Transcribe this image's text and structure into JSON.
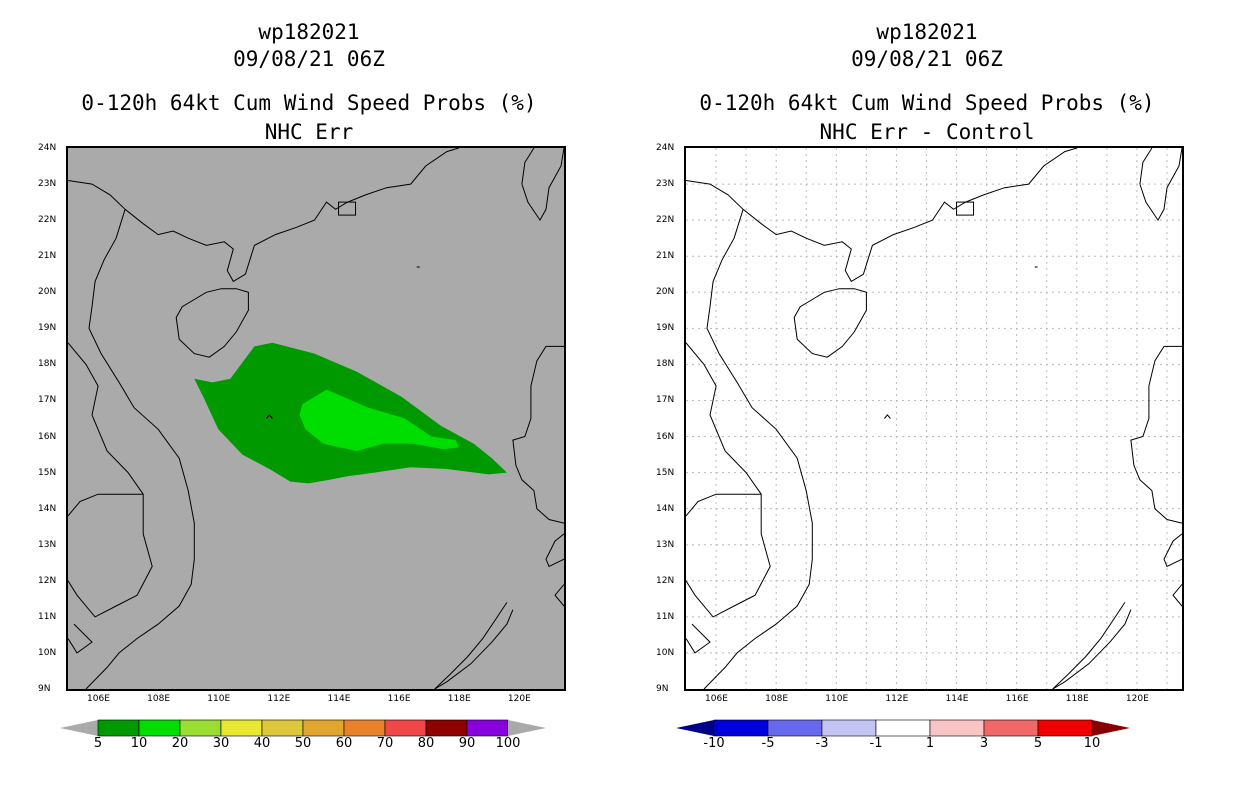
{
  "left": {
    "title_line1": "wp182021",
    "title_line2": "09/08/21 06Z",
    "title_line3": "0-120h 64kt Cum Wind Speed Probs (%)",
    "title_line4": "NHC Err",
    "background": "#aaaaaa",
    "region_10_color": "#009900",
    "region_20_color": "#00dd00",
    "colorbar": {
      "labels": [
        "5",
        "10",
        "20",
        "30",
        "40",
        "50",
        "60",
        "70",
        "80",
        "90",
        "100"
      ],
      "colors": [
        "#009900",
        "#00dd00",
        "#99dd33",
        "#e8e833",
        "#dcc83a",
        "#e0a62d",
        "#e8822a",
        "#f04848",
        "#900000",
        "#8800dd"
      ],
      "end_color": "#aaaaaa"
    }
  },
  "right": {
    "title_line1": "wp182021",
    "title_line2": "09/08/21 06Z",
    "title_line3": "0-120h 64kt Cum Wind Speed Probs (%)",
    "title_line4": "NHC Err - Control",
    "background": "#ffffff",
    "colorbar": {
      "labels": [
        "-10",
        "-5",
        "-3",
        "-1",
        "1",
        "3",
        "5",
        "10"
      ],
      "colors": [
        "#0000dd",
        "#6868ee",
        "#c4c4f4",
        "#ffffff",
        "#f8c4c4",
        "#f06868",
        "#ee0000"
      ],
      "low_color": "#000088",
      "high_color": "#880000"
    }
  },
  "axes": {
    "lat_labels": [
      "24N",
      "23N",
      "22N",
      "21N",
      "20N",
      "19N",
      "18N",
      "17N",
      "16N",
      "15N",
      "14N",
      "13N",
      "12N",
      "11N",
      "10N",
      "9N"
    ],
    "lon_labels": [
      "106E",
      "108E",
      "110E",
      "112E",
      "114E",
      "116E",
      "118E",
      "120E"
    ],
    "lon_min": 105,
    "lon_max": 121.5,
    "lat_min": 9,
    "lat_max": 24
  },
  "prob_regions": {
    "ten_pct": [
      [
        109.2,
        17.6
      ],
      [
        109.8,
        17.5
      ],
      [
        110.4,
        17.6
      ],
      [
        111.2,
        18.5
      ],
      [
        111.8,
        18.6
      ],
      [
        113.2,
        18.3
      ],
      [
        114.6,
        17.8
      ],
      [
        116.1,
        17.1
      ],
      [
        117.4,
        16.3
      ],
      [
        118.5,
        15.8
      ],
      [
        119.1,
        15.4
      ],
      [
        119.6,
        15.0
      ],
      [
        119.0,
        14.95
      ],
      [
        117.6,
        15.1
      ],
      [
        116.4,
        15.15
      ],
      [
        115.2,
        15.0
      ],
      [
        114.3,
        14.9
      ],
      [
        113.7,
        14.8
      ],
      [
        113.0,
        14.7
      ],
      [
        112.4,
        14.75
      ],
      [
        111.7,
        15.1
      ],
      [
        110.8,
        15.5
      ],
      [
        110.0,
        16.2
      ],
      [
        109.5,
        17.1
      ]
    ],
    "twenty_pct": [
      [
        112.8,
        16.9
      ],
      [
        113.6,
        17.3
      ],
      [
        115.0,
        16.8
      ],
      [
        116.2,
        16.5
      ],
      [
        117.1,
        16.0
      ],
      [
        117.9,
        15.9
      ],
      [
        118.0,
        15.7
      ],
      [
        117.5,
        15.65
      ],
      [
        116.5,
        15.8
      ],
      [
        115.5,
        15.8
      ],
      [
        114.6,
        15.6
      ],
      [
        113.5,
        15.8
      ],
      [
        112.9,
        16.2
      ],
      [
        112.7,
        16.6
      ]
    ]
  }
}
